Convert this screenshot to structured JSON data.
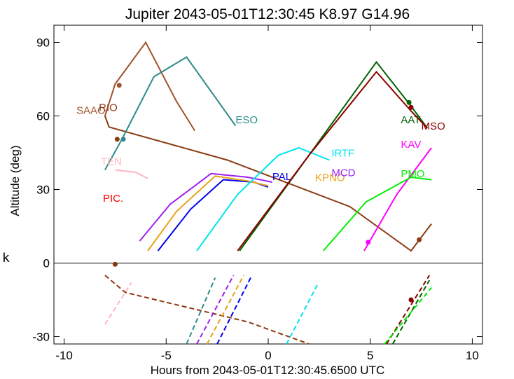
{
  "chart_data": {
    "type": "line",
    "title": "Jupiter 2043-05-01T12:30:45  K8.97  G14.96",
    "xlabel": "Hours from 2043-05-01T12:30:45.6500 UTC",
    "ylabel": "Altitude (deg)",
    "stray_label": "k",
    "xlim": [
      -10.5,
      10.5
    ],
    "ylim": [
      -33,
      97
    ],
    "xticks": [
      -10,
      -5,
      0,
      5,
      10
    ],
    "yticks": [
      -30,
      0,
      30,
      60,
      90
    ],
    "grid": false,
    "legend": "none",
    "hline": 0,
    "series": [
      {
        "name": "SAAO",
        "color": "#a0522d",
        "label_pos": [
          -9.4,
          60.8
        ],
        "points": [
          [
            -8,
            60
          ],
          [
            -7.5,
            73
          ],
          [
            -6,
            90
          ],
          [
            -4.5,
            66
          ],
          [
            -3.6,
            54
          ]
        ],
        "markers": [
          [
            -7.3,
            72.5
          ]
        ]
      },
      {
        "name": "RIO",
        "color": "#8b3a10",
        "label_pos": [
          -8.3,
          62
        ],
        "points": [
          [
            -8,
            60
          ],
          [
            -7.8,
            55.5
          ],
          [
            -2,
            42
          ],
          [
            4,
            23
          ],
          [
            7,
            5
          ],
          [
            8,
            16
          ]
        ],
        "markers": [
          [
            -7.4,
            50.5
          ],
          [
            7.4,
            9.5
          ]
        ],
        "below_dash": [
          [
            -8,
            -5
          ],
          [
            -7,
            -12
          ],
          [
            -1,
            -24
          ],
          [
            2,
            -33
          ]
        ]
      },
      {
        "name": "ESO",
        "color": "#2e8b8b",
        "label_pos": [
          -1.6,
          57
        ],
        "points": [
          [
            -8,
            38
          ],
          [
            -7.2,
            50
          ],
          [
            -5.6,
            76
          ],
          [
            -4,
            84
          ],
          [
            -1.6,
            56
          ]
        ],
        "markers": [
          [
            -7.1,
            50.5
          ]
        ],
        "below_dash": [
          [
            -4,
            -33
          ],
          [
            -2.6,
            -6
          ]
        ]
      },
      {
        "name": "TEN",
        "color": "#ffb6c1",
        "label_pos": [
          -8.2,
          40
        ],
        "points": [
          [
            -7.5,
            38
          ],
          [
            -6.5,
            37
          ],
          [
            -5.9,
            34.5
          ]
        ],
        "below_dash": [
          [
            -8,
            -25
          ],
          [
            -6.7,
            -8
          ]
        ]
      },
      {
        "name": "PIC.",
        "color": "#ff0000",
        "label_pos": [
          -8.1,
          25
        ],
        "points": []
      },
      {
        "name": "PAL",
        "color": "#0000ee",
        "label_pos": [
          0.2,
          33.8
        ],
        "points": [
          [
            -5.4,
            5
          ],
          [
            -3.8,
            22
          ],
          [
            -2.2,
            34
          ],
          [
            -0.7,
            33
          ],
          [
            0,
            31
          ]
        ],
        "below_dash": [
          [
            -2.5,
            -33
          ],
          [
            -0.8,
            -5
          ]
        ]
      },
      {
        "name": "KPNO",
        "color": "#e8a317",
        "label_pos": [
          2.3,
          33.5
        ],
        "points": [
          [
            -5.9,
            5
          ],
          [
            -4.5,
            21
          ],
          [
            -2.6,
            35.5
          ],
          [
            -1,
            33.5
          ],
          [
            0,
            31.5
          ]
        ],
        "below_dash": [
          [
            -3,
            -33
          ],
          [
            -1.2,
            -5
          ]
        ]
      },
      {
        "name": "MCD",
        "color": "#a020f0",
        "label_pos": [
          3.1,
          35.5
        ],
        "points": [
          [
            -6.3,
            9
          ],
          [
            -4.8,
            24
          ],
          [
            -2.8,
            36.5
          ],
          [
            -1,
            35
          ],
          [
            0.2,
            33
          ]
        ],
        "below_dash": [
          [
            -3.5,
            -33
          ],
          [
            -1.7,
            -5
          ]
        ]
      },
      {
        "name": "IRTF",
        "color": "#00e5ee",
        "label_pos": [
          3.1,
          43.5
        ],
        "points": [
          [
            -3.5,
            5
          ],
          [
            -1.5,
            28
          ],
          [
            0.5,
            44
          ],
          [
            1.5,
            47
          ],
          [
            3,
            42
          ]
        ],
        "below_dash": [
          [
            0.9,
            -33
          ],
          [
            2.4,
            -9
          ]
        ]
      },
      {
        "name": "AAT",
        "color": "#006400",
        "label_pos": [
          6.5,
          57
        ],
        "points": [
          [
            -1.4,
            5
          ],
          [
            2,
            44
          ],
          [
            5.3,
            82
          ],
          [
            7,
            64
          ],
          [
            7.8,
            55
          ]
        ],
        "markers": [
          [
            6.9,
            65.5
          ]
        ],
        "below_dash": [
          [
            6.1,
            -33
          ],
          [
            7.9,
            -7
          ]
        ]
      },
      {
        "name": "MSO",
        "color": "#8b0000",
        "label_pos": [
          7.5,
          54.5
        ],
        "points": [
          [
            -1.5,
            5
          ],
          [
            2,
            44
          ],
          [
            5.3,
            78
          ],
          [
            7,
            62
          ],
          [
            7.8,
            55
          ]
        ],
        "markers": [
          [
            7,
            63.5
          ],
          [
            7,
            -15
          ]
        ],
        "below_dash": [
          [
            5.8,
            -33
          ],
          [
            7.9,
            -5
          ]
        ]
      },
      {
        "name": "KAV",
        "color": "#ff00ff",
        "label_pos": [
          6.5,
          47
        ],
        "points": [
          [
            4.7,
            5
          ],
          [
            6.3,
            28
          ],
          [
            8,
            47
          ]
        ],
        "markers": [
          [
            4.9,
            8.5
          ]
        ]
      },
      {
        "name": "PMO",
        "color": "#00ee00",
        "label_pos": [
          6.5,
          35
        ],
        "points": [
          [
            2.7,
            5
          ],
          [
            4.8,
            25
          ],
          [
            7,
            35
          ],
          [
            8,
            34
          ]
        ],
        "below_dash": [
          [
            5.7,
            -33
          ],
          [
            8,
            -10
          ]
        ]
      }
    ],
    "extra_markers": [
      {
        "x": -7.5,
        "y": -0.5,
        "color": "#8b3a10"
      }
    ]
  }
}
